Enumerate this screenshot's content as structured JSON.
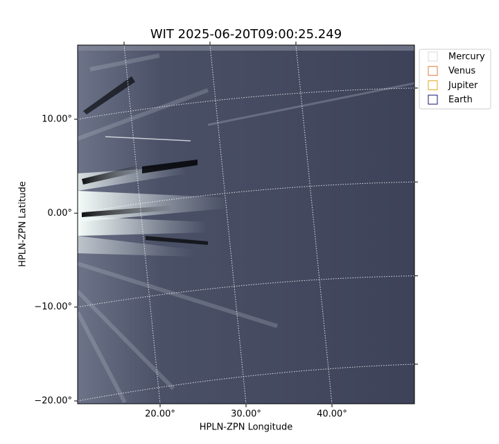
{
  "chart_data": {
    "type": "image",
    "title": "WIT 2025-06-20T09:00:25.249",
    "x_label": "HPLN-ZPN Longitude",
    "y_label": "HPLN-ZPN Latitude",
    "xlim": [
      10.4,
      49.6
    ],
    "ylim": [
      -20.3,
      17.9
    ],
    "xticks": [
      {
        "value": 20,
        "label": "20.00°"
      },
      {
        "value": 30,
        "label": "30.00°"
      },
      {
        "value": 40,
        "label": "40.00°"
      }
    ],
    "yticks": [
      {
        "value": -20,
        "label": "−20.00°"
      },
      {
        "value": -10,
        "label": "−10.00°"
      },
      {
        "value": 0,
        "label": "0.00°"
      },
      {
        "value": 10,
        "label": "10.00°"
      }
    ],
    "grid": true,
    "legend": "upper right outside",
    "legend_entries": [
      {
        "name": "Mercury",
        "color": "#d8d8d8"
      },
      {
        "name": "Venus",
        "color": "#e07b39"
      },
      {
        "name": "Jupiter",
        "color": "#e0a81c"
      },
      {
        "name": "Earth",
        "color": "#14146e"
      }
    ]
  }
}
